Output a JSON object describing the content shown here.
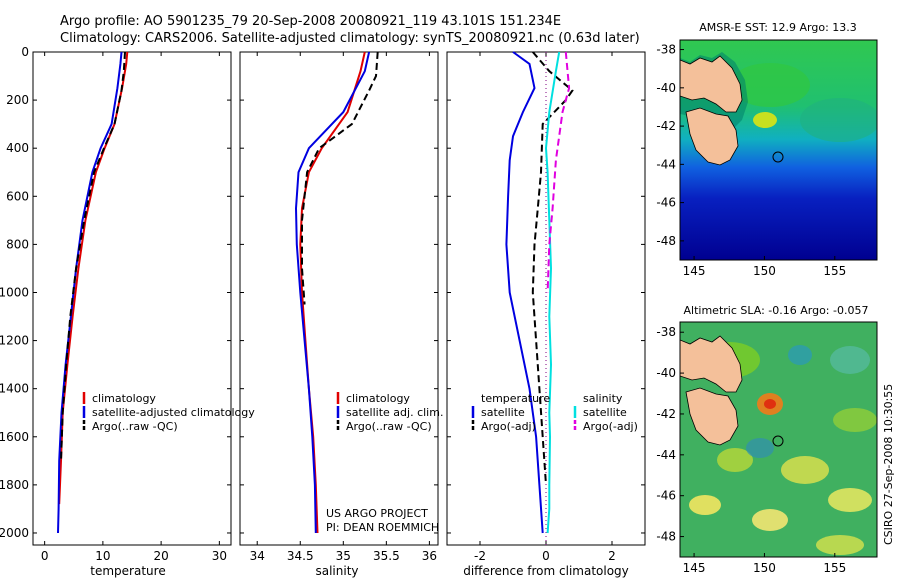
{
  "header": {
    "line1": "Argo profile: AO 5901235_79 20-Sep-2008 20080921_119 43.101S 151.234E",
    "line2": "Climatology: CARS2006. Satellite-adjusted climatology: synTS_20080921.nc (0.63d later)"
  },
  "credit": {
    "line1": "US ARGO PROJECT",
    "line2": "PI: DEAN ROEMMICH"
  },
  "stamp": "CSIRO 27-Sep-2008 10:30:55",
  "colors": {
    "climatology": "#e00000",
    "satellite": "#0000e0",
    "argo": "#000000",
    "salinity_sat": "#00e0e0",
    "salinity_argo": "#e000e0"
  },
  "chart_data": [
    {
      "type": "line",
      "xlabel": "temperature",
      "ylabel": "",
      "xlim": [
        -2,
        32
      ],
      "ylim": [
        2050,
        0
      ],
      "xticks": [
        0,
        10,
        20,
        30
      ],
      "yticks": [
        0,
        200,
        400,
        600,
        800,
        1000,
        1200,
        1400,
        1600,
        1800,
        2000
      ],
      "legend_position": "lower-right",
      "series": [
        {
          "name": "climatology",
          "color": "#e00000",
          "style": "solid",
          "x": [
            14.2,
            14.0,
            13.3,
            12.0,
            10.3,
            8.8,
            7.0,
            5.8,
            4.8,
            3.9,
            3.1,
            2.8,
            2.5
          ],
          "y": [
            0,
            50,
            150,
            300,
            400,
            500,
            700,
            900,
            1100,
            1300,
            1500,
            1700,
            1880
          ]
        },
        {
          "name": "satellite-adjusted climatology",
          "color": "#0000e0",
          "style": "solid",
          "x": [
            13.2,
            13.0,
            12.5,
            11.5,
            9.6,
            8.2,
            6.5,
            5.4,
            4.5,
            3.6,
            2.9,
            2.5,
            2.4,
            2.3
          ],
          "y": [
            0,
            50,
            150,
            300,
            400,
            500,
            700,
            900,
            1100,
            1300,
            1500,
            1700,
            1900,
            2000
          ]
        },
        {
          "name": "Argo(..raw -QC)",
          "color": "#000000",
          "style": "dashed",
          "x": [
            13.8,
            13.6,
            13.2,
            12.0,
            10.2,
            8.5,
            6.8,
            5.4,
            4.4,
            3.7,
            3.1,
            2.8
          ],
          "y": [
            0,
            80,
            160,
            300,
            400,
            500,
            700,
            900,
            1100,
            1300,
            1500,
            1700
          ]
        }
      ]
    },
    {
      "type": "line",
      "xlabel": "salinity",
      "ylabel": "",
      "xlim": [
        33.8,
        36.1
      ],
      "ylim": [
        2050,
        0
      ],
      "xticks": [
        34,
        34.5,
        35,
        35.5,
        36
      ],
      "legend_position": "lower-right",
      "series": [
        {
          "name": "climatology",
          "color": "#e00000",
          "style": "solid",
          "x": [
            35.25,
            35.2,
            35.05,
            34.75,
            34.6,
            34.52,
            34.5,
            34.52,
            34.56,
            34.6,
            34.65,
            34.68,
            34.7
          ],
          "y": [
            0,
            80,
            250,
            400,
            500,
            650,
            800,
            1000,
            1200,
            1400,
            1600,
            1800,
            2000
          ]
        },
        {
          "name": "satellite adj. clim.",
          "color": "#0000e0",
          "style": "solid",
          "x": [
            35.3,
            35.25,
            35.0,
            34.6,
            34.48,
            34.45,
            34.46,
            34.5,
            34.55,
            34.6,
            34.64,
            34.67,
            34.68
          ],
          "y": [
            0,
            80,
            250,
            400,
            500,
            650,
            800,
            1000,
            1200,
            1400,
            1600,
            1800,
            2000
          ]
        },
        {
          "name": "Argo(..raw -QC)",
          "color": "#000000",
          "style": "dashed",
          "x": [
            35.4,
            35.38,
            35.3,
            35.1,
            34.72,
            34.58,
            34.52,
            34.52,
            34.55
          ],
          "y": [
            0,
            100,
            160,
            300,
            400,
            500,
            700,
            900,
            1050
          ]
        }
      ]
    },
    {
      "type": "line",
      "xlabel": "difference from climatology",
      "ylabel": "",
      "xlim": [
        -3,
        3
      ],
      "ylim": [
        2050,
        0
      ],
      "xticks": [
        -2,
        0,
        2
      ],
      "legend_position": "lower-center",
      "legend_groups": [
        "temperature",
        "salinity"
      ],
      "series": [
        {
          "name": "satellite",
          "group": "temperature",
          "color": "#0000e0",
          "style": "solid",
          "x": [
            -1.0,
            -0.5,
            -0.35,
            -0.7,
            -1.0,
            -1.1,
            -1.15,
            -1.2,
            -1.1,
            -0.8,
            -0.5,
            -0.3,
            -0.2,
            -0.1
          ],
          "y": [
            0,
            50,
            150,
            250,
            350,
            450,
            600,
            800,
            1000,
            1200,
            1400,
            1600,
            1800,
            2000
          ]
        },
        {
          "name": "Argo(-adj)",
          "group": "temperature",
          "color": "#000000",
          "style": "dashed",
          "x": [
            -0.4,
            0.1,
            0.8,
            0.6,
            -0.1,
            -0.15,
            -0.25,
            -0.35,
            -0.4,
            -0.3,
            -0.2,
            -0.1,
            0.0
          ],
          "y": [
            0,
            80,
            160,
            200,
            300,
            500,
            650,
            800,
            1000,
            1200,
            1400,
            1600,
            1800
          ]
        },
        {
          "name": "satellite",
          "group": "salinity",
          "color": "#00e0e0",
          "style": "solid",
          "x": [
            0.4,
            0.3,
            0.1,
            0.0,
            0.05,
            0.1,
            0.15,
            0.1,
            0.15,
            0.1,
            0.12,
            0.1,
            0.1,
            0.05
          ],
          "y": [
            0,
            80,
            250,
            400,
            500,
            700,
            900,
            1100,
            1300,
            1500,
            1600,
            1800,
            1900,
            2000
          ]
        },
        {
          "name": "Argo(-adj)",
          "group": "salinity",
          "color": "#e000e0",
          "style": "dashed",
          "x": [
            0.6,
            0.7,
            0.5,
            0.3,
            0.2,
            0.1,
            0.05
          ],
          "y": [
            0,
            150,
            250,
            450,
            650,
            800,
            1000
          ]
        }
      ]
    },
    {
      "type": "heatmap",
      "title": "AMSR-E SST: 12.9 Argo: 13.3",
      "xlim": [
        144,
        158
      ],
      "ylim": [
        -49,
        -37.5
      ],
      "xticks": [
        145,
        150,
        155
      ],
      "yticks": [
        -38,
        -40,
        -42,
        -44,
        -46,
        -48
      ],
      "marker": {
        "lon": 151.2,
        "lat": -43.1
      }
    },
    {
      "type": "heatmap",
      "title": "Altimetric SLA: -0.16 Argo: -0.057",
      "xlim": [
        144,
        158
      ],
      "ylim": [
        -49,
        -37.5
      ],
      "xticks": [
        145,
        150,
        155
      ],
      "yticks": [
        -38,
        -40,
        -42,
        -44,
        -46,
        -48
      ],
      "marker": {
        "lon": 151.2,
        "lat": -43.1
      }
    }
  ]
}
